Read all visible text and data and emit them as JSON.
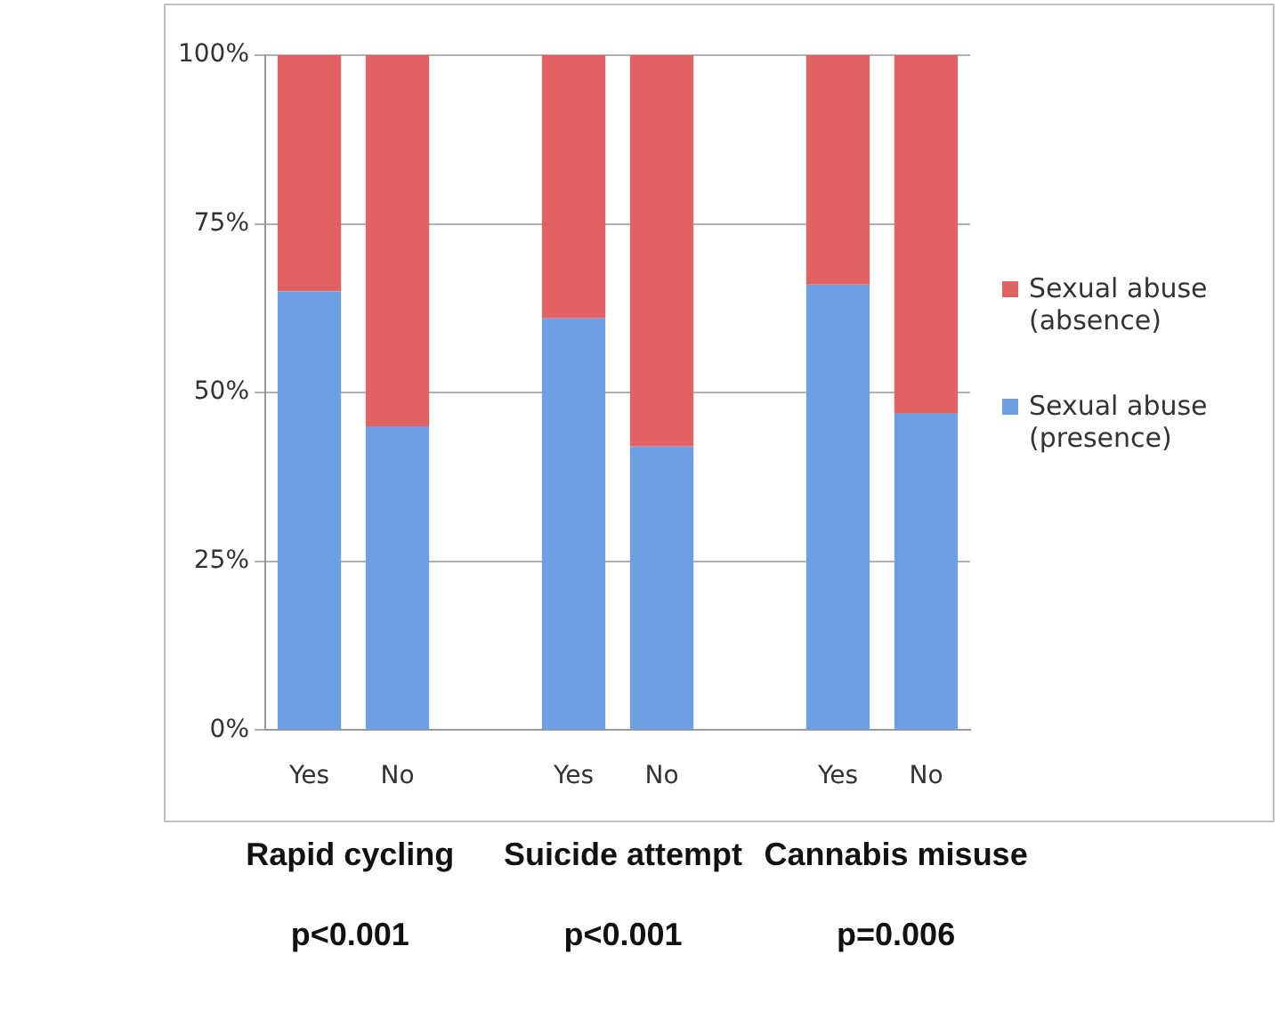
{
  "chart_data": {
    "type": "bar",
    "stacked": true,
    "categories": [
      "Yes",
      "No",
      null,
      "Yes",
      "No",
      null,
      "Yes",
      "No"
    ],
    "series": [
      {
        "name": "Sexual abuse (presence)",
        "color": "#6f9fe3",
        "values": [
          65,
          45,
          null,
          61,
          42,
          null,
          66,
          47
        ]
      },
      {
        "name": "Sexual abuse (absence)",
        "color": "#e06262",
        "values": [
          35,
          55,
          null,
          39,
          58,
          null,
          34,
          53
        ]
      }
    ],
    "ylim": [
      0,
      100
    ],
    "yticks": [
      {
        "value": 0,
        "label": "0%"
      },
      {
        "value": 25,
        "label": "25%"
      },
      {
        "value": 50,
        "label": "50%"
      },
      {
        "value": 75,
        "label": "75%"
      },
      {
        "value": 100,
        "label": "100%"
      }
    ],
    "grid": "y",
    "legend": "right",
    "annotations": [
      "Rapid cycling",
      "Suicide attempt",
      "Cannabis misuse",
      "p<0.001",
      "p<0.001",
      "p=0.006"
    ]
  }
}
